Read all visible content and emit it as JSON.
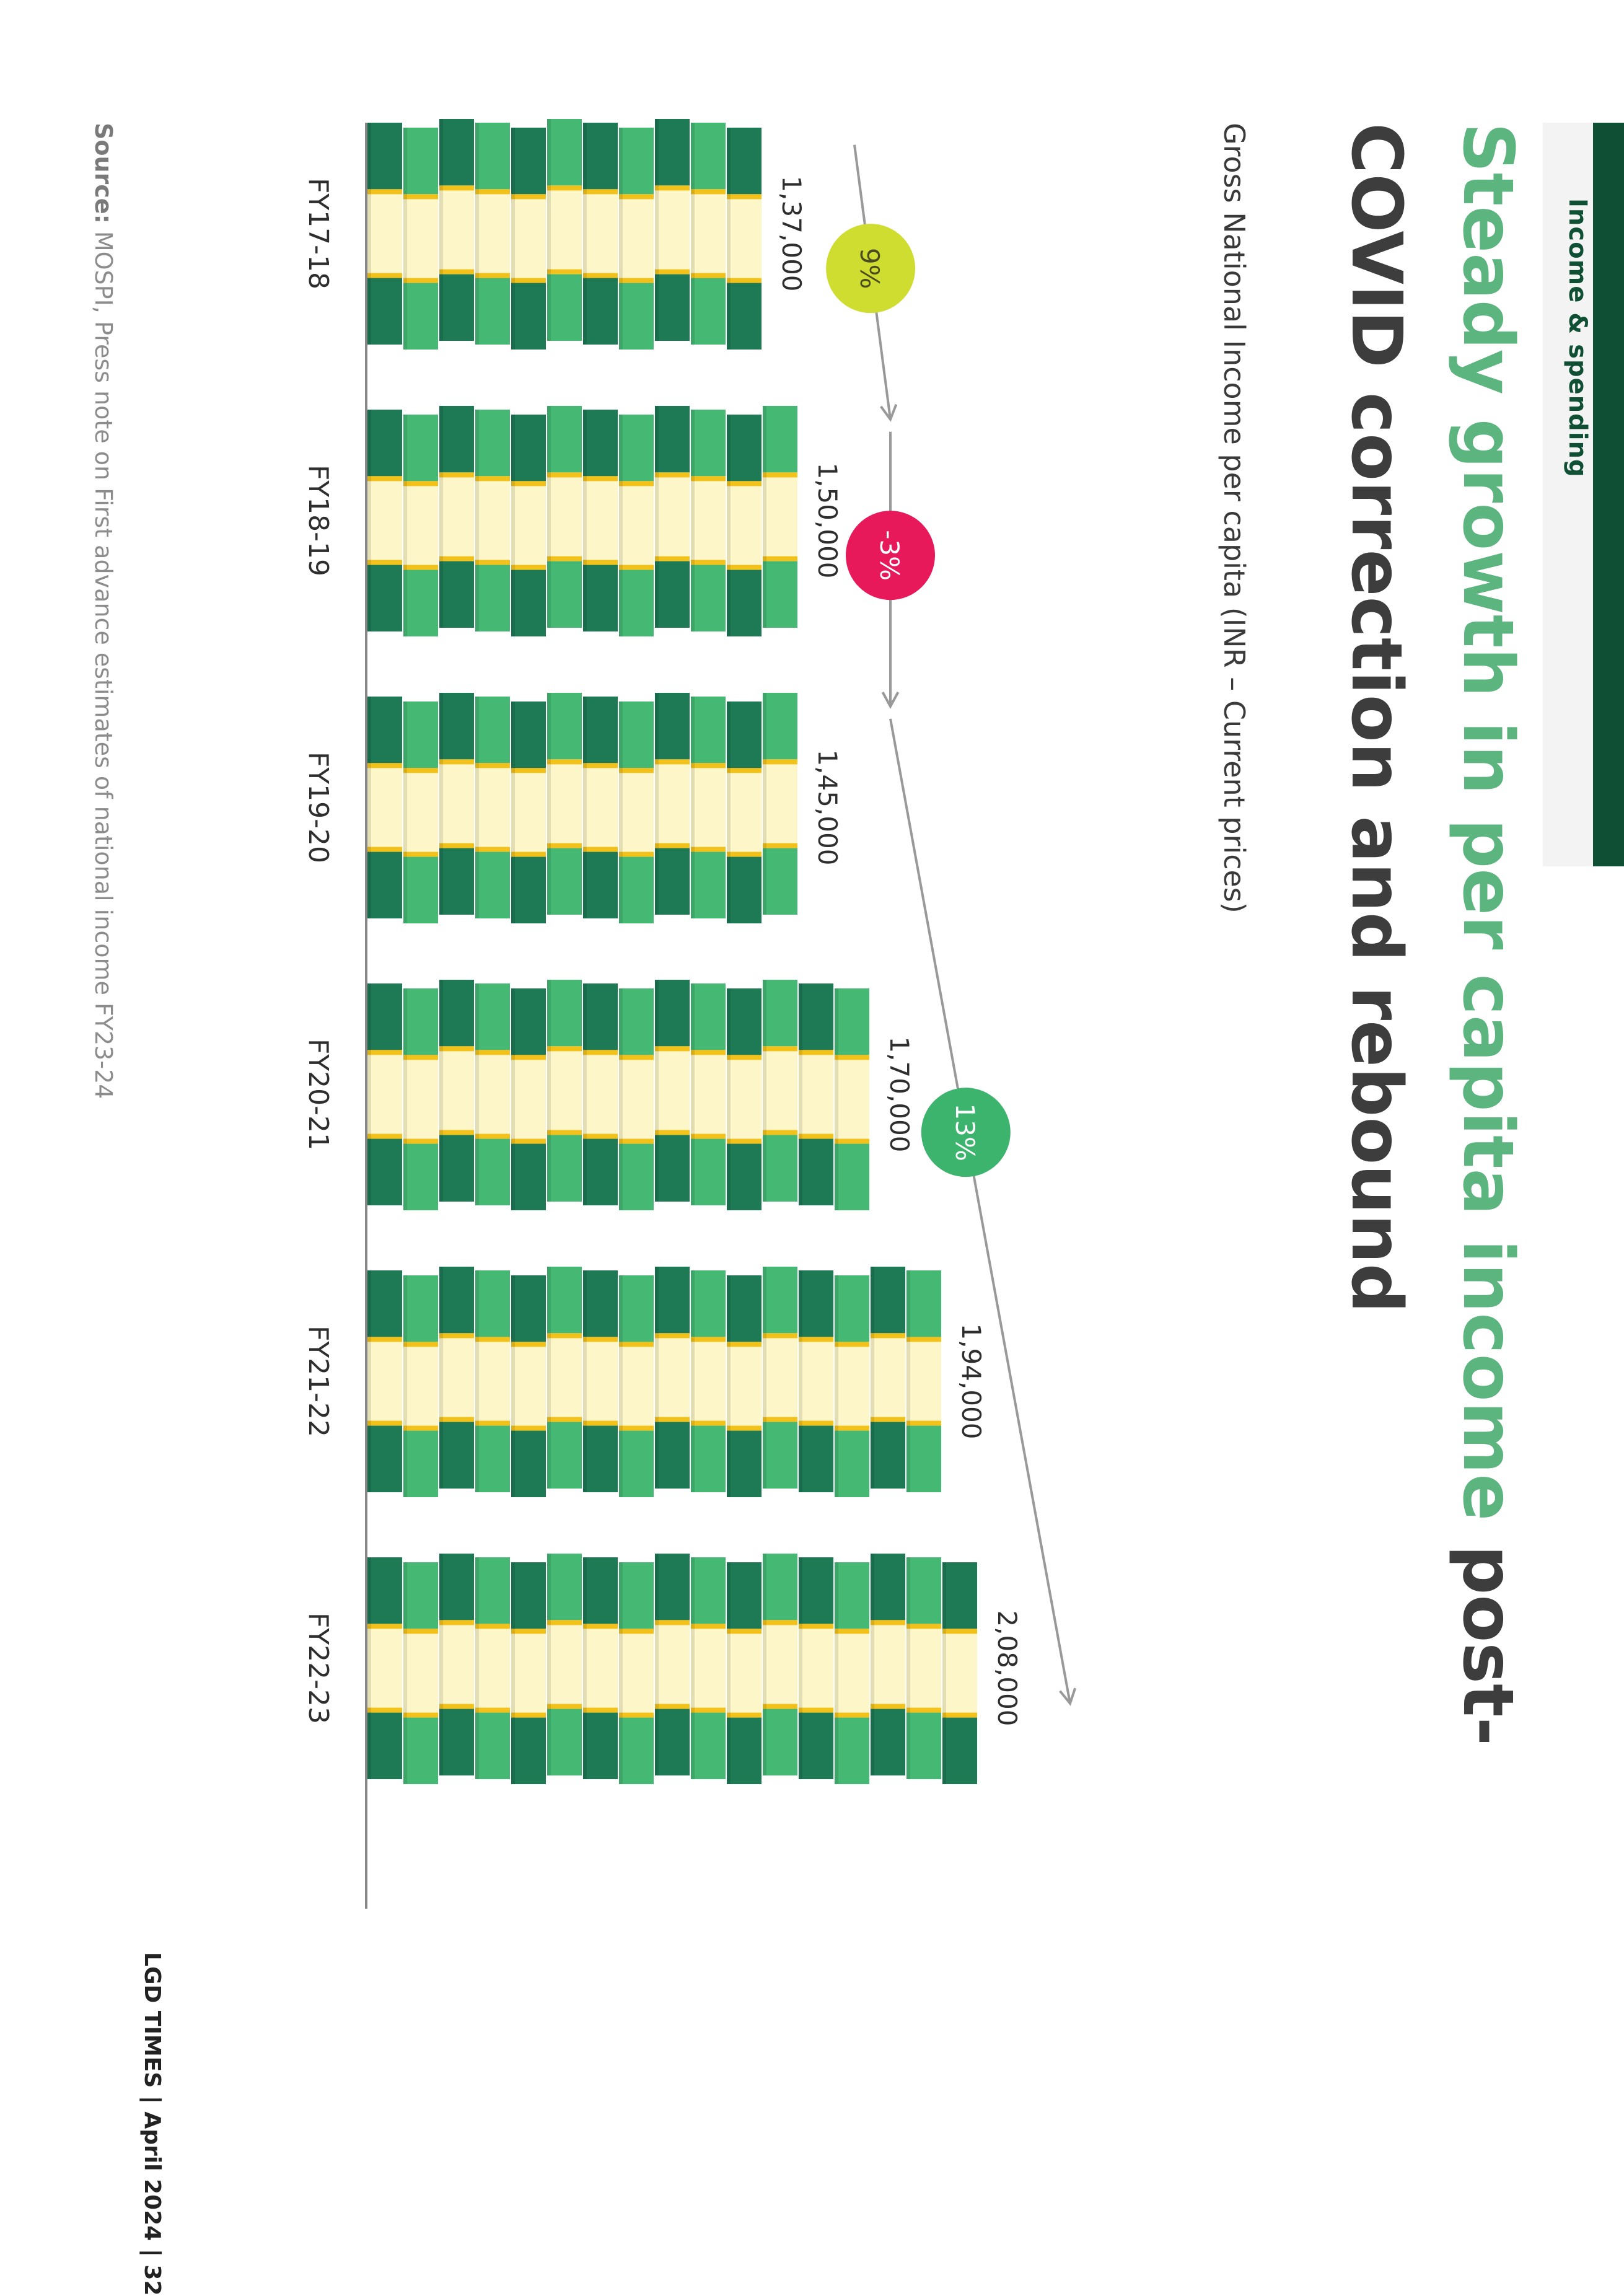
{
  "header": {
    "section_label": "Income & spending",
    "title_highlight": "Steady growth in per capita income",
    "title_rest": " post-COVID correction and rebound",
    "subtitle": "Gross National Income per capita (INR – Current prices)"
  },
  "chart_data": {
    "type": "bar",
    "title": "Steady growth in per capita income post-COVID correction and rebound",
    "ylabel": "Gross National Income per capita (INR – Current prices)",
    "categories": [
      "FY17-18",
      "FY18-19",
      "FY19-20",
      "FY20-21",
      "FY21-22",
      "FY22-23"
    ],
    "values": [
      137000,
      150000,
      145000,
      170000,
      194000,
      208000
    ],
    "value_labels": [
      "1,37,000",
      "1,50,000",
      "1,45,000",
      "1,70,000",
      "1,94,000",
      "2,08,000"
    ],
    "growth_annotations": [
      {
        "label": "9%",
        "from": "FY17-18",
        "to": "FY18-19",
        "color": "#cfdc30"
      },
      {
        "label": "-3%",
        "from": "FY18-19",
        "to": "FY19-20",
        "color": "#e8195a"
      },
      {
        "label": "13%",
        "from": "FY19-20",
        "to": "FY22-23",
        "color": "#3cb46e"
      }
    ],
    "colors": {
      "dark_green": "#1d7a55",
      "light_green": "#45b874",
      "cream": "#fdf6c9",
      "gold": "#f2c21b"
    }
  },
  "source": {
    "label": "Source:",
    "text": " MOSPI, Press note on First advance estimates of national income FY23-24"
  },
  "footer": {
    "text": "LGD TIMES | April 2024 | 32"
  }
}
